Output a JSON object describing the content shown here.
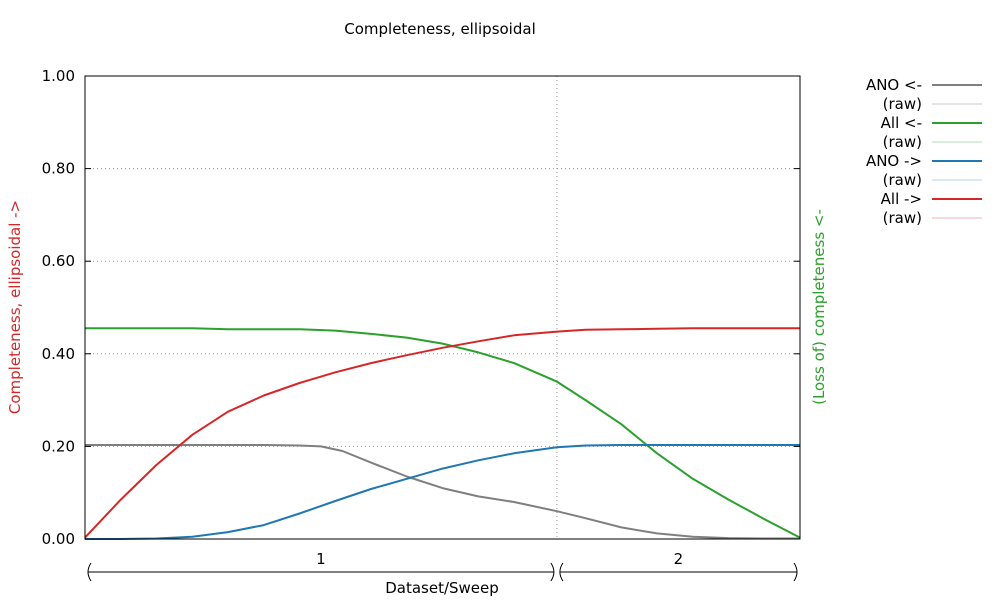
{
  "chart_data": {
    "type": "line",
    "title": "Completeness, ellipsoidal",
    "xlabel": "Dataset/Sweep",
    "ylabel_left": "Completeness, ellipsoidal ->",
    "ylabel_right": "(Loss of) completeness <-",
    "xlim": [
      0,
      1
    ],
    "ylim": [
      0,
      1
    ],
    "y_ticks": [
      "0.00",
      "0.20",
      "0.40",
      "0.60",
      "0.80",
      "1.00"
    ],
    "y_tick_values": [
      0,
      0.2,
      0.4,
      0.6,
      0.8,
      1.0
    ],
    "grid": true,
    "legend_position": "outside-right",
    "sweep_boundary": 0.66,
    "datasets": [
      {
        "label": "1",
        "start": 0,
        "end": 0.66
      },
      {
        "label": "2",
        "start": 0.66,
        "end": 1.0
      }
    ],
    "series": [
      {
        "name": "ANO <-",
        "raw_name": "(raw)",
        "color": "#7f7f7f",
        "raw_color": "#c8c8c8",
        "x": [
          0,
          0.05,
          0.1,
          0.15,
          0.2,
          0.25,
          0.3,
          0.33,
          0.36,
          0.4,
          0.45,
          0.5,
          0.55,
          0.6,
          0.66,
          0.7,
          0.75,
          0.8,
          0.85,
          0.9,
          0.95,
          1.0
        ],
        "y": [
          0.203,
          0.203,
          0.203,
          0.203,
          0.203,
          0.203,
          0.202,
          0.2,
          0.19,
          0.165,
          0.135,
          0.11,
          0.092,
          0.08,
          0.06,
          0.045,
          0.025,
          0.012,
          0.005,
          0.002,
          0.001,
          0.001
        ]
      },
      {
        "name": "All <-",
        "raw_name": "(raw)",
        "color": "#2ca02c",
        "raw_color": "#b5dcb5",
        "x": [
          0,
          0.05,
          0.1,
          0.15,
          0.2,
          0.25,
          0.3,
          0.35,
          0.4,
          0.45,
          0.5,
          0.55,
          0.6,
          0.66,
          0.7,
          0.75,
          0.8,
          0.85,
          0.9,
          0.95,
          1.0
        ],
        "y": [
          0.455,
          0.455,
          0.455,
          0.455,
          0.453,
          0.453,
          0.453,
          0.45,
          0.443,
          0.435,
          0.422,
          0.403,
          0.38,
          0.34,
          0.3,
          0.248,
          0.185,
          0.13,
          0.085,
          0.043,
          0.003
        ]
      },
      {
        "name": "ANO ->",
        "raw_name": "(raw)",
        "color": "#1f77b4",
        "raw_color": "#b0d0e8",
        "x": [
          0,
          0.05,
          0.1,
          0.15,
          0.2,
          0.25,
          0.3,
          0.35,
          0.4,
          0.45,
          0.5,
          0.55,
          0.6,
          0.66,
          0.7,
          0.75,
          0.8,
          0.85,
          0.9,
          0.95,
          1.0
        ],
        "y": [
          0.0,
          0.0,
          0.001,
          0.005,
          0.015,
          0.03,
          0.055,
          0.082,
          0.108,
          0.13,
          0.152,
          0.17,
          0.185,
          0.198,
          0.202,
          0.203,
          0.203,
          0.203,
          0.203,
          0.203,
          0.203
        ]
      },
      {
        "name": "All ->",
        "raw_name": "(raw)",
        "color": "#d62728",
        "raw_color": "#f0b0b0",
        "x": [
          0,
          0.05,
          0.1,
          0.15,
          0.2,
          0.25,
          0.3,
          0.35,
          0.4,
          0.45,
          0.5,
          0.55,
          0.6,
          0.66,
          0.7,
          0.75,
          0.8,
          0.85,
          0.9,
          0.95,
          1.0
        ],
        "y": [
          0.003,
          0.085,
          0.16,
          0.225,
          0.275,
          0.31,
          0.337,
          0.36,
          0.38,
          0.397,
          0.413,
          0.427,
          0.44,
          0.448,
          0.452,
          0.453,
          0.454,
          0.455,
          0.455,
          0.455,
          0.455
        ]
      }
    ]
  }
}
